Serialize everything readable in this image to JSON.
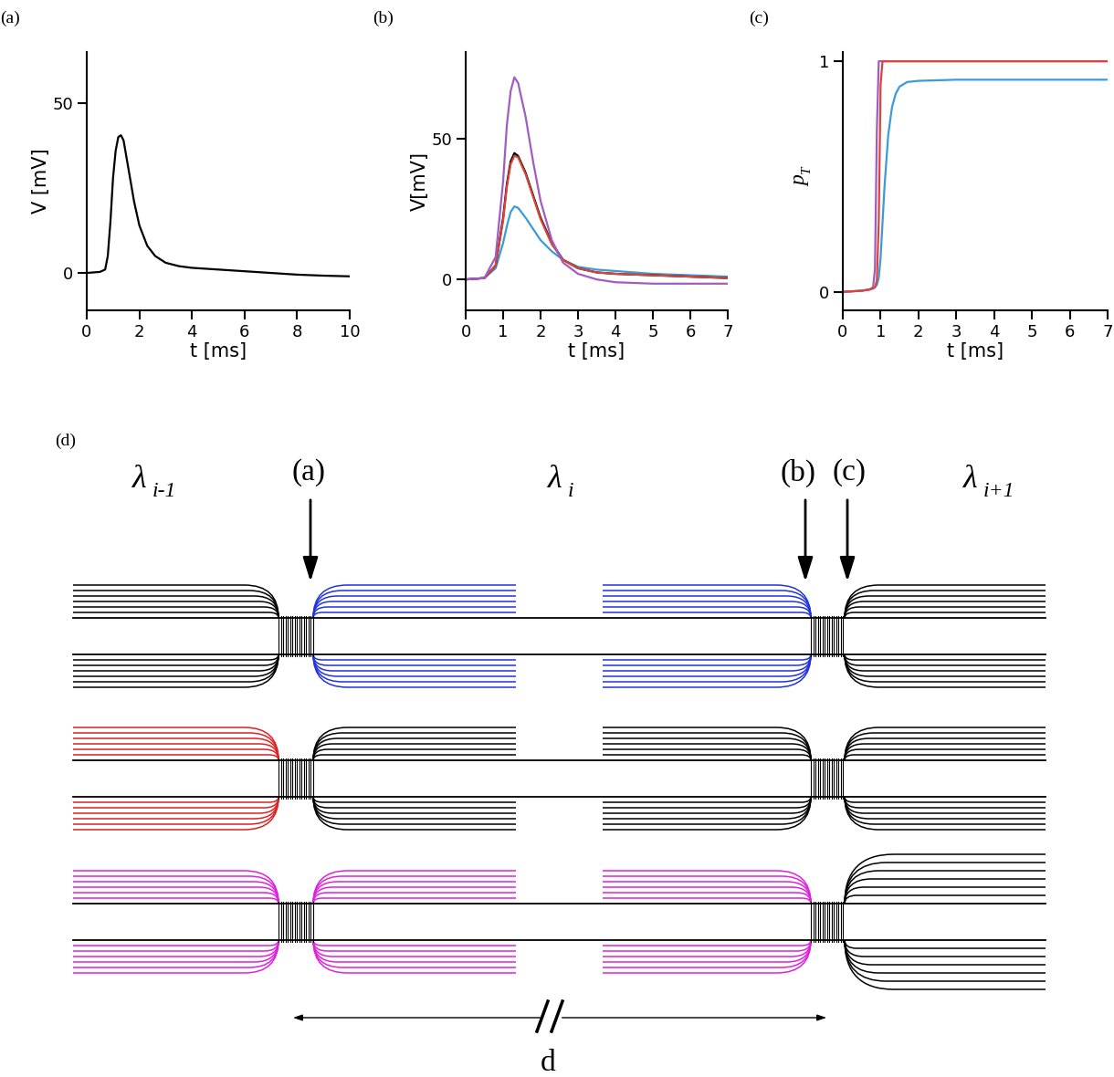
{
  "chart_data": [
    {
      "type": "line",
      "title": "(a)",
      "xlabel": "t [ms]",
      "ylabel": "V [mV]",
      "xlim": [
        0,
        10
      ],
      "xticks": [
        0,
        2,
        4,
        6,
        8,
        10
      ],
      "ylim": [
        -11,
        65
      ],
      "yticks": [
        0,
        50
      ],
      "x": [
        0,
        0.5,
        0.7,
        0.8,
        0.9,
        1.0,
        1.1,
        1.2,
        1.3,
        1.4,
        1.6,
        1.8,
        2.0,
        2.3,
        2.6,
        3.0,
        3.5,
        4,
        5,
        6,
        7,
        8,
        9,
        10
      ],
      "series": [
        {
          "color": "#000000",
          "values": [
            0,
            0.3,
            1,
            5,
            15,
            28,
            36,
            40,
            40.5,
            39,
            30,
            21,
            14,
            8,
            5,
            3,
            2,
            1.5,
            1,
            0.5,
            0,
            -0.5,
            -0.8,
            -1
          ]
        }
      ]
    },
    {
      "type": "line",
      "title": "(b)",
      "xlabel": "t [ms]",
      "ylabel": "V[mV]",
      "xlim": [
        0,
        7
      ],
      "xticks": [
        0,
        1,
        2,
        3,
        4,
        5,
        6,
        7
      ],
      "ylim": [
        -11,
        81
      ],
      "yticks": [
        0,
        50
      ],
      "x": [
        0,
        0.5,
        0.8,
        1.0,
        1.1,
        1.2,
        1.3,
        1.4,
        1.6,
        1.8,
        2.0,
        2.3,
        2.6,
        3,
        3.5,
        4,
        5,
        6,
        7
      ],
      "series": [
        {
          "color": "#3b9bd8",
          "values": [
            0,
            0.5,
            4,
            13,
            19,
            24,
            26,
            25.5,
            22,
            18,
            14,
            10,
            7,
            4.5,
            3.5,
            3,
            2,
            1.5,
            1
          ]
        },
        {
          "color": "#000000",
          "values": [
            0,
            0.5,
            5,
            22,
            34,
            42,
            45,
            44,
            38,
            30,
            22,
            13,
            7,
            4,
            2.5,
            2,
            1.5,
            1,
            0.5
          ]
        },
        {
          "color": "#d9453a",
          "values": [
            0,
            0.5,
            5,
            21,
            33,
            41,
            44,
            43.5,
            37.5,
            29.5,
            21.5,
            12.5,
            7,
            4,
            2.5,
            2,
            1.5,
            1,
            0.5
          ]
        },
        {
          "color": "#a05cc4",
          "values": [
            0,
            0.5,
            8,
            35,
            55,
            67,
            72,
            70,
            58,
            42,
            28,
            14,
            6,
            2,
            0,
            -1,
            -1.5,
            -1.5,
            -1.5
          ]
        }
      ]
    },
    {
      "type": "line",
      "title": "(c)",
      "xlabel": "t [ms]",
      "ylabel": {
        "symbol": "p",
        "subscript": "T"
      },
      "xlim": [
        0,
        7
      ],
      "xticks": [
        0,
        1,
        2,
        3,
        4,
        5,
        6,
        7
      ],
      "ylim": [
        -0.08,
        1.04
      ],
      "yticks": [
        0,
        1
      ],
      "x": [
        0,
        0.5,
        0.7,
        0.8,
        0.85,
        0.9,
        0.95,
        1.0,
        1.05,
        1.1,
        1.2,
        1.3,
        1.4,
        1.5,
        1.7,
        2,
        3,
        5,
        7
      ],
      "series": [
        {
          "color": "#3b9bd8",
          "values": [
            0,
            0.005,
            0.01,
            0.015,
            0.02,
            0.03,
            0.06,
            0.15,
            0.3,
            0.45,
            0.68,
            0.8,
            0.86,
            0.89,
            0.91,
            0.915,
            0.92,
            0.92,
            0.92
          ]
        },
        {
          "color": "#a05cc4",
          "values": [
            0,
            0.005,
            0.01,
            0.02,
            0.1,
            0.7,
            1,
            1,
            1,
            1,
            1,
            1,
            1,
            1,
            1,
            1,
            1,
            1,
            1
          ]
        },
        {
          "color": "#d9453a",
          "values": [
            0,
            0.005,
            0.01,
            0.015,
            0.02,
            0.05,
            0.3,
            0.9,
            1,
            1,
            1,
            1,
            1,
            1,
            1,
            1,
            1,
            1,
            1
          ]
        }
      ]
    }
  ],
  "diagram": {
    "label": "(d)",
    "internodes": [
      {
        "symbol": "λ",
        "subscript": "i-1"
      },
      {
        "symbol": "λ",
        "subscript": "i"
      },
      {
        "symbol": "λ",
        "subscript": "i+1"
      }
    ],
    "markers": [
      "(a)",
      "(b)",
      "(c)"
    ],
    "distance_label": "d",
    "rows": [
      {
        "left": "#000000",
        "middle": "#2233dd",
        "right": "#000000"
      },
      {
        "left": "#dd2222",
        "middle": "#000000",
        "right": "#000000"
      },
      {
        "left": "#dd22dd",
        "middle": "#dd22dd",
        "right": "#000000"
      }
    ]
  }
}
